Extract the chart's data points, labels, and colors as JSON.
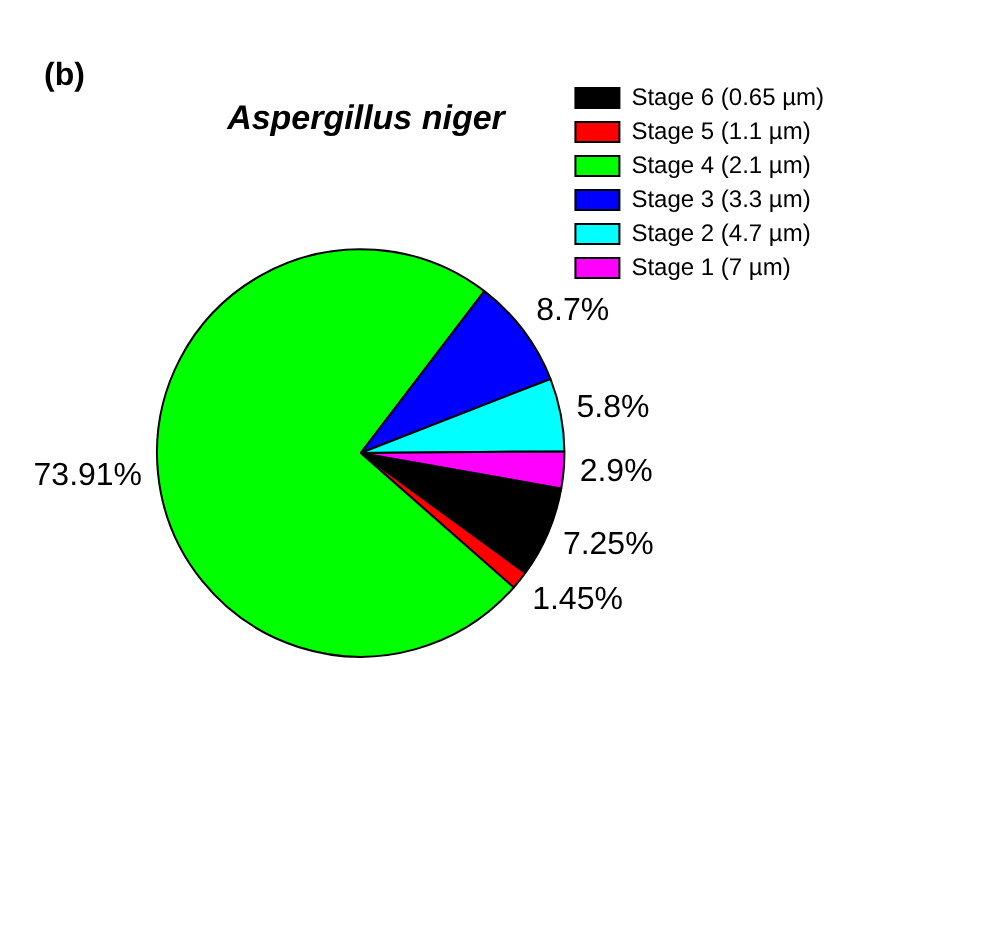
{
  "chart_data": {
    "type": "pie",
    "title": "Aspergillus niger",
    "annotations": [
      "(b)"
    ],
    "categories": [
      "Stage 6 (0.65 µm)",
      "Stage 5 (1.1 µm)",
      "Stage 4 (2.1 µm)",
      "Stage 3 (3.3 µm)",
      "Stage 2 (4.7 µm)",
      "Stage 1 (7 µm)"
    ],
    "values": [
      7.25,
      1.45,
      73.91,
      8.7,
      5.8,
      2.9
    ],
    "value_labels": [
      "7.25%",
      "1.45%",
      "73.91%",
      "8.7%",
      "5.8%",
      "2.9%"
    ],
    "colors": [
      "#000000",
      "#ff0000",
      "#00ff00",
      "#0000ff",
      "#00ffff",
      "#ff00ff"
    ],
    "legend": "top right"
  }
}
